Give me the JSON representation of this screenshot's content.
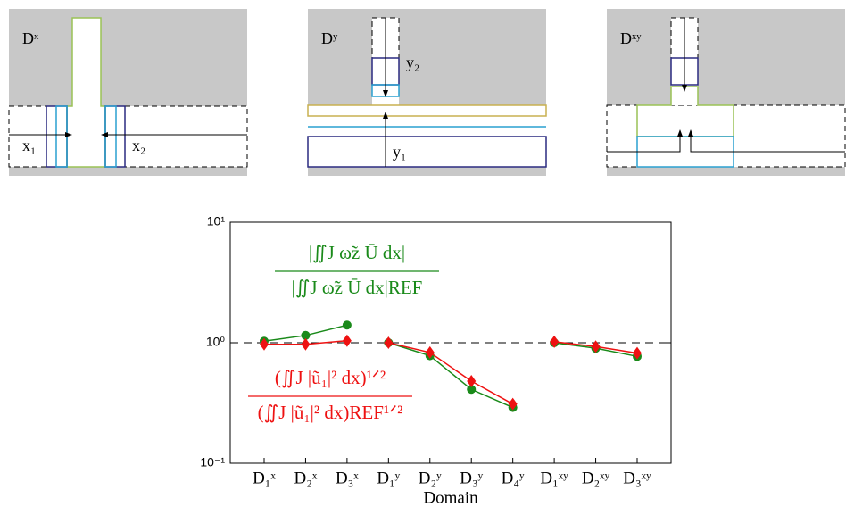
{
  "diagrams": [
    {
      "label": "Dˣ",
      "annotations": [
        "x₁",
        "x₂"
      ]
    },
    {
      "label": "Dʸ",
      "annotations": [
        "y₂",
        "y₁"
      ]
    },
    {
      "label": "Dˣʸ",
      "annotations": []
    }
  ],
  "chart_data": {
    "type": "line",
    "xlabel": "Domain",
    "categories": [
      "D₁ˣ",
      "D₂ˣ",
      "D₃ˣ",
      "D₁ʸ",
      "D₂ʸ",
      "D₃ʸ",
      "D₄ʸ",
      "D₁ˣʸ",
      "D₂ˣʸ",
      "D₃ˣʸ"
    ],
    "log_y": true,
    "ylim": [
      0.1,
      10
    ],
    "yticks": [
      {
        "value": 0.1,
        "label": "10⁻¹"
      },
      {
        "value": 1,
        "label": "10⁰"
      },
      {
        "value": 10,
        "label": "10¹"
      }
    ],
    "reference_line": 1,
    "annotations": [
      {
        "numerator": "|∬J ω̃z Ū dx|",
        "denominator": "|∬J ω̃z Ū dx|REF",
        "color": "#1a8a1a"
      },
      {
        "numerator": "(∬J |ũ₁|² dx)¹ᐟ²",
        "denominator": "(∬J |ũ₁|² dx)REF¹ᐟ²",
        "color": "#ee1111"
      }
    ],
    "series": [
      {
        "color": "#1a8a1a",
        "marker": "circle",
        "values": [
          1.03,
          1.15,
          1.4,
          null,
          null,
          null,
          null,
          null,
          null,
          null
        ]
      },
      {
        "color": "#1a8a1a",
        "marker": "circle",
        "values": [
          null,
          null,
          null,
          1.0,
          0.78,
          0.41,
          0.29,
          null,
          null,
          null
        ]
      },
      {
        "color": "#1a8a1a",
        "marker": "circle",
        "values": [
          null,
          null,
          null,
          null,
          null,
          null,
          null,
          1.0,
          0.9,
          0.77
        ]
      },
      {
        "color": "#ee1111",
        "marker": "diamond",
        "values": [
          0.97,
          0.97,
          1.04,
          null,
          null,
          null,
          null,
          null,
          null,
          null
        ]
      },
      {
        "color": "#ee1111",
        "marker": "diamond",
        "values": [
          null,
          null,
          null,
          1.0,
          0.83,
          0.48,
          0.31,
          null,
          null,
          null
        ]
      },
      {
        "color": "#ee1111",
        "marker": "diamond",
        "values": [
          null,
          null,
          null,
          null,
          null,
          null,
          null,
          1.02,
          0.93,
          0.82
        ]
      }
    ]
  }
}
